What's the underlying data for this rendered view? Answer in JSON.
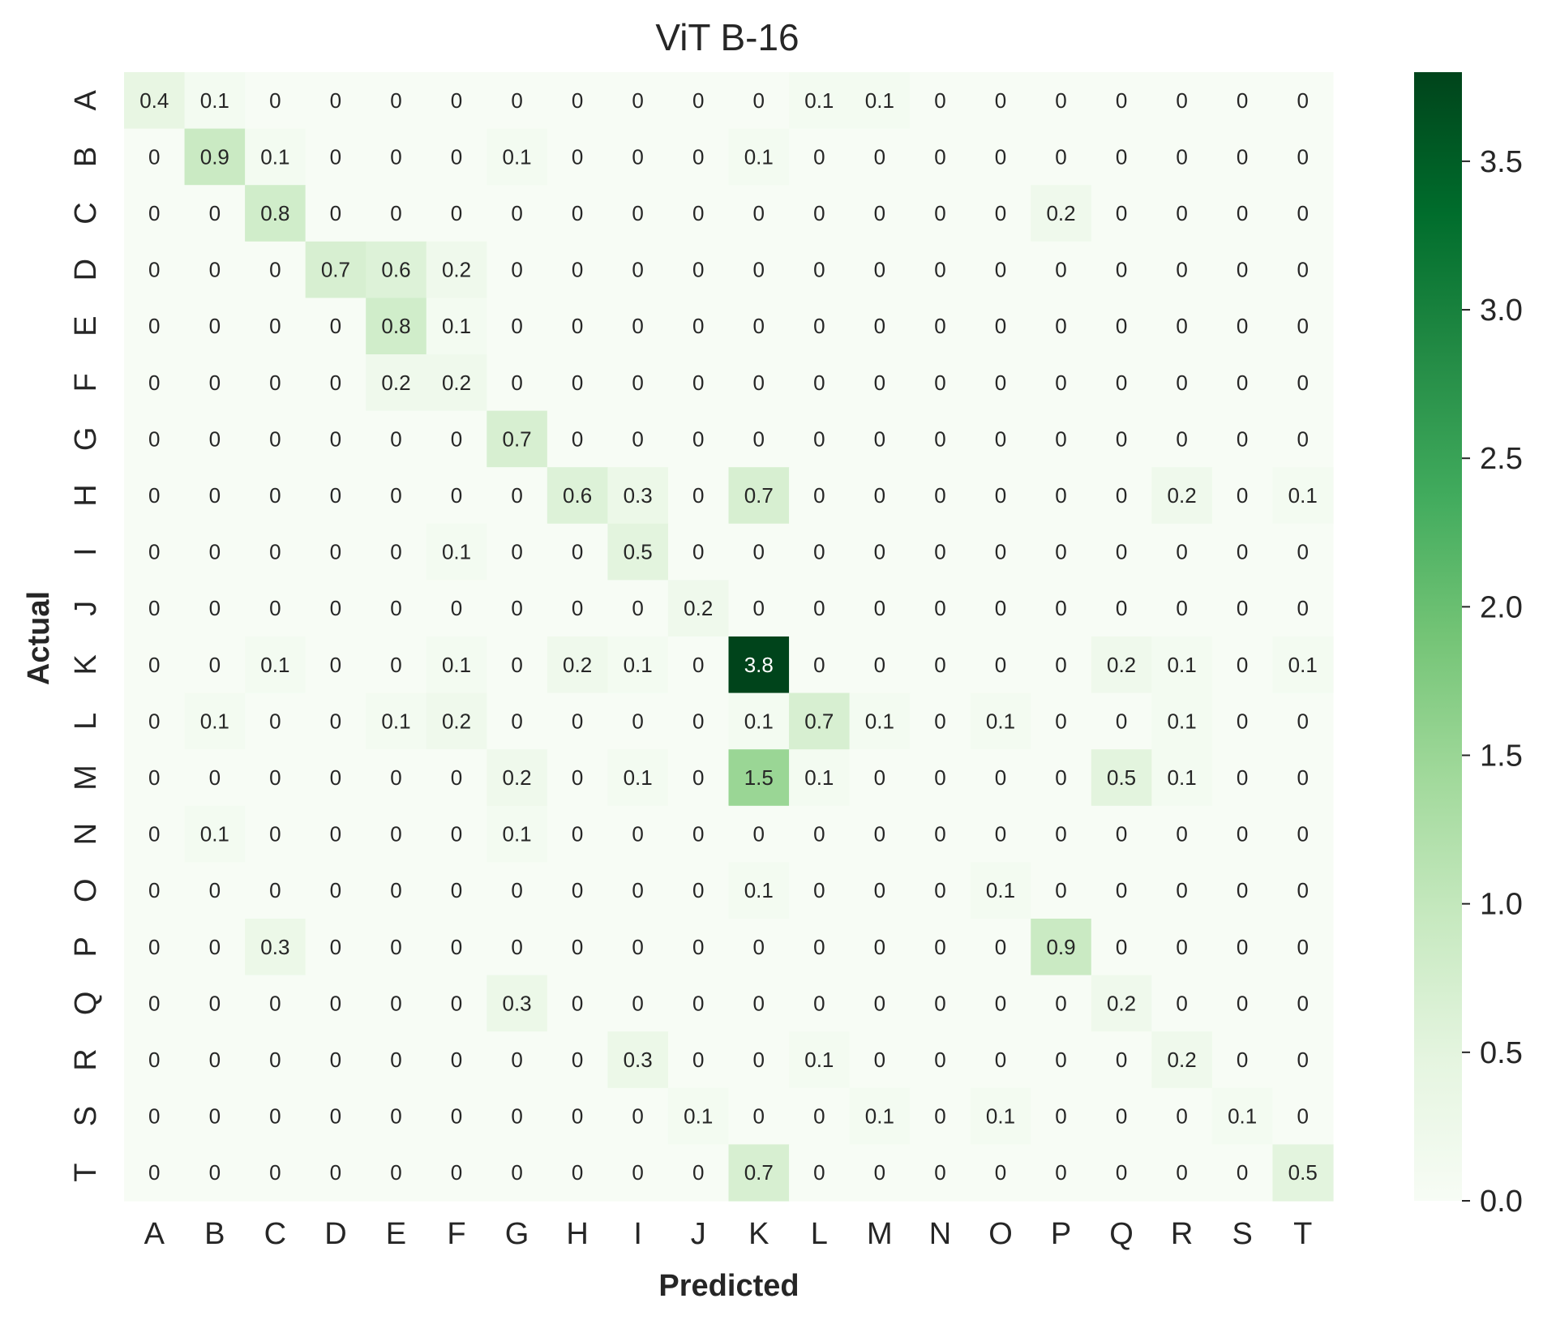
{
  "chart_data": {
    "type": "heatmap",
    "title": "ViT B-16",
    "xlabel": "Predicted",
    "ylabel": "Actual",
    "x_categories": [
      "A",
      "B",
      "C",
      "D",
      "E",
      "F",
      "G",
      "H",
      "I",
      "J",
      "K",
      "L",
      "M",
      "N",
      "O",
      "P",
      "Q",
      "R",
      "S",
      "T"
    ],
    "y_categories": [
      "A",
      "B",
      "C",
      "D",
      "E",
      "F",
      "G",
      "H",
      "I",
      "J",
      "K",
      "L",
      "M",
      "N",
      "O",
      "P",
      "Q",
      "R",
      "S",
      "T"
    ],
    "values": [
      [
        0.4,
        0.1,
        0,
        0,
        0,
        0,
        0,
        0,
        0,
        0,
        0,
        0.1,
        0.1,
        0,
        0,
        0,
        0,
        0,
        0,
        0
      ],
      [
        0,
        0.9,
        0.1,
        0,
        0,
        0,
        0.1,
        0,
        0,
        0,
        0.1,
        0,
        0,
        0,
        0,
        0,
        0,
        0,
        0,
        0
      ],
      [
        0,
        0,
        0.8,
        0,
        0,
        0,
        0,
        0,
        0,
        0,
        0,
        0,
        0,
        0,
        0,
        0.2,
        0,
        0,
        0,
        0
      ],
      [
        0,
        0,
        0,
        0.7,
        0.6,
        0.2,
        0,
        0,
        0,
        0,
        0,
        0,
        0,
        0,
        0,
        0,
        0,
        0,
        0,
        0
      ],
      [
        0,
        0,
        0,
        0,
        0.8,
        0.1,
        0,
        0,
        0,
        0,
        0,
        0,
        0,
        0,
        0,
        0,
        0,
        0,
        0,
        0
      ],
      [
        0,
        0,
        0,
        0,
        0.2,
        0.2,
        0,
        0,
        0,
        0,
        0,
        0,
        0,
        0,
        0,
        0,
        0,
        0,
        0,
        0
      ],
      [
        0,
        0,
        0,
        0,
        0,
        0,
        0.7,
        0,
        0,
        0,
        0,
        0,
        0,
        0,
        0,
        0,
        0,
        0,
        0,
        0
      ],
      [
        0,
        0,
        0,
        0,
        0,
        0,
        0,
        0.6,
        0.3,
        0,
        0.7,
        0,
        0,
        0,
        0,
        0,
        0,
        0.2,
        0,
        0.1
      ],
      [
        0,
        0,
        0,
        0,
        0,
        0.1,
        0,
        0,
        0.5,
        0,
        0,
        0,
        0,
        0,
        0,
        0,
        0,
        0,
        0,
        0
      ],
      [
        0,
        0,
        0,
        0,
        0,
        0,
        0,
        0,
        0,
        0.2,
        0,
        0,
        0,
        0,
        0,
        0,
        0,
        0,
        0,
        0
      ],
      [
        0,
        0,
        0.1,
        0,
        0,
        0.1,
        0,
        0.2,
        0.1,
        0,
        3.8,
        0,
        0,
        0,
        0,
        0,
        0.2,
        0.1,
        0,
        0.1
      ],
      [
        0,
        0.1,
        0,
        0,
        0.1,
        0.2,
        0,
        0,
        0,
        0,
        0.1,
        0.7,
        0.1,
        0,
        0.1,
        0,
        0,
        0.1,
        0,
        0
      ],
      [
        0,
        0,
        0,
        0,
        0,
        0,
        0.2,
        0,
        0.1,
        0,
        1.5,
        0.1,
        0,
        0,
        0,
        0,
        0.5,
        0.1,
        0,
        0
      ],
      [
        0,
        0.1,
        0,
        0,
        0,
        0,
        0.1,
        0,
        0,
        0,
        0,
        0,
        0,
        0,
        0,
        0,
        0,
        0,
        0,
        0
      ],
      [
        0,
        0,
        0,
        0,
        0,
        0,
        0,
        0,
        0,
        0,
        0.1,
        0,
        0,
        0,
        0.1,
        0,
        0,
        0,
        0,
        0
      ],
      [
        0,
        0,
        0.3,
        0,
        0,
        0,
        0,
        0,
        0,
        0,
        0,
        0,
        0,
        0,
        0,
        0.9,
        0,
        0,
        0,
        0
      ],
      [
        0,
        0,
        0,
        0,
        0,
        0,
        0.3,
        0,
        0,
        0,
        0,
        0,
        0,
        0,
        0,
        0,
        0.2,
        0,
        0,
        0
      ],
      [
        0,
        0,
        0,
        0,
        0,
        0,
        0,
        0,
        0.3,
        0,
        0,
        0.1,
        0,
        0,
        0,
        0,
        0,
        0.2,
        0,
        0
      ],
      [
        0,
        0,
        0,
        0,
        0,
        0,
        0,
        0,
        0,
        0.1,
        0,
        0,
        0.1,
        0,
        0.1,
        0,
        0,
        0,
        0.1,
        0
      ],
      [
        0,
        0,
        0,
        0,
        0,
        0,
        0,
        0,
        0,
        0,
        0.7,
        0,
        0,
        0,
        0,
        0,
        0,
        0,
        0,
        0.5
      ]
    ],
    "colorbar": {
      "min": 0.0,
      "max": 3.8,
      "ticks": [
        0.0,
        0.5,
        1.0,
        1.5,
        2.0,
        2.5,
        3.0,
        3.5
      ],
      "tick_labels": [
        "0.0",
        "0.5",
        "1.0",
        "1.5",
        "2.0",
        "2.5",
        "3.0",
        "3.5"
      ],
      "colormap": "Greens",
      "color_low": "#f7fcf5",
      "color_high": "#00441b"
    },
    "grid": false,
    "legend": "colorbar-right"
  }
}
